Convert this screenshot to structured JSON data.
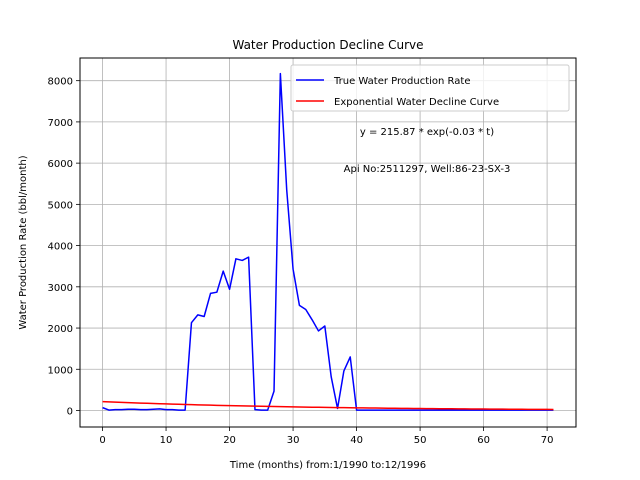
{
  "chart_data": {
    "type": "line",
    "title": "Water Production Decline Curve",
    "xlabel": "Time (months) from:1/1990 to:12/1996",
    "ylabel": "Water Production Rate (bbl/month)",
    "xlim": [
      -3.55,
      74.55
    ],
    "ylim": [
      -400,
      8550
    ],
    "xticks": [
      0,
      10,
      20,
      30,
      40,
      50,
      60,
      70
    ],
    "yticks": [
      0,
      1000,
      2000,
      3000,
      4000,
      5000,
      6000,
      7000,
      8000
    ],
    "grid": true,
    "legend_position": "top-right",
    "annotations": [
      "y = 215.87 * exp(-0.03 * t)",
      "Api No:2511297, Well:86-23-SX-3"
    ],
    "series": [
      {
        "name": "True Water Production Rate",
        "color": "#0000ff",
        "x": [
          0,
          1,
          2,
          3,
          4,
          5,
          6,
          7,
          8,
          9,
          10,
          11,
          12,
          13,
          14,
          15,
          16,
          17,
          18,
          19,
          20,
          21,
          22,
          23,
          24,
          25,
          26,
          27,
          28,
          29,
          30,
          31,
          32,
          33,
          34,
          35,
          36,
          37,
          38,
          39,
          40,
          41,
          42,
          43,
          44,
          45,
          46,
          47,
          48,
          49,
          50,
          51,
          52,
          53,
          54,
          55,
          56,
          57,
          58,
          59,
          60,
          61,
          62,
          63,
          64,
          65,
          66,
          67,
          68,
          69,
          70,
          71
        ],
        "y": [
          70,
          10,
          20,
          20,
          30,
          30,
          20,
          20,
          30,
          40,
          20,
          20,
          10,
          10,
          2130,
          2320,
          2280,
          2840,
          2870,
          3380,
          2940,
          3680,
          3640,
          3720,
          20,
          10,
          10,
          470,
          8170,
          5350,
          3430,
          2550,
          2450,
          2200,
          1930,
          2050,
          820,
          50,
          960,
          1300,
          10,
          10,
          10,
          10,
          10,
          10,
          10,
          10,
          10,
          10,
          10,
          10,
          10,
          10,
          10,
          10,
          10,
          10,
          10,
          10,
          10,
          10,
          10,
          10,
          10,
          10,
          10,
          10,
          10,
          10,
          10,
          10
        ]
      },
      {
        "name": "Exponential Water Decline Curve",
        "color": "#ff0000",
        "fit": {
          "a": 215.87,
          "b": -0.03
        },
        "x_range": [
          0,
          71
        ]
      }
    ]
  }
}
